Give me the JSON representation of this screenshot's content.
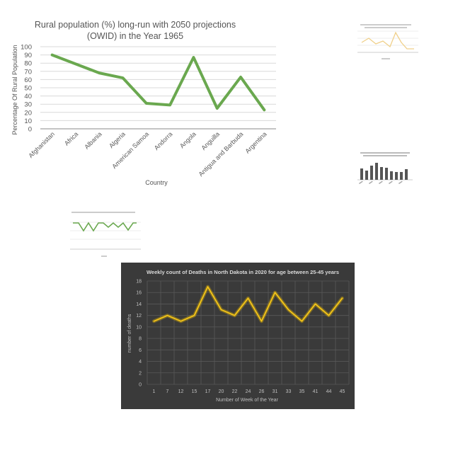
{
  "chart_data": [
    {
      "type": "line",
      "title": "Rural population (%) long-run with 2050 projections (OWID) in the Year 1965",
      "title_lines": [
        "Rural population (%) long-run with 2050 projections",
        "(OWID) in the Year 1965"
      ],
      "xlabel": "Country",
      "ylabel": "Percentage Of Rural  Population",
      "categories": [
        "Afghanistan",
        "Africa",
        "Albania",
        "Algeria",
        "American Samoa",
        "Andorra",
        "Angola",
        "Anguilla",
        "Antigua and Barbuda",
        "Argentina"
      ],
      "values": [
        90,
        79,
        68,
        62,
        31,
        29,
        87,
        25,
        63,
        23
      ],
      "ylim": [
        0,
        100
      ],
      "yticks": [
        0,
        10,
        20,
        30,
        40,
        50,
        60,
        70,
        80,
        90,
        100
      ],
      "grid": true,
      "color": "#6aa84f",
      "background": "#ffffff"
    },
    {
      "type": "line",
      "title": "Weekly count of Deaths in North Dakota  in 2020 for age between 25-45 years",
      "xlabel": "Number of Week of the Year",
      "ylabel": "number of deaths",
      "categories": [
        "1",
        "7",
        "12",
        "15",
        "17",
        "20",
        "22",
        "24",
        "26",
        "31",
        "33",
        "35",
        "41",
        "44",
        "45"
      ],
      "values": [
        11,
        12,
        11,
        12,
        17,
        13,
        12,
        15,
        11,
        16,
        13,
        11,
        14,
        12,
        15
      ],
      "ylim": [
        0,
        18
      ],
      "yticks": [
        0,
        2,
        4,
        6,
        8,
        10,
        12,
        14,
        16,
        18
      ],
      "grid": true,
      "color": "#f2c100",
      "background": "#3a3a3a"
    }
  ],
  "colors": {
    "thumb_line_yellow": "#f0d08a",
    "thumb_bar_gray": "#555555",
    "thumb_line_green": "#6aa84f"
  }
}
